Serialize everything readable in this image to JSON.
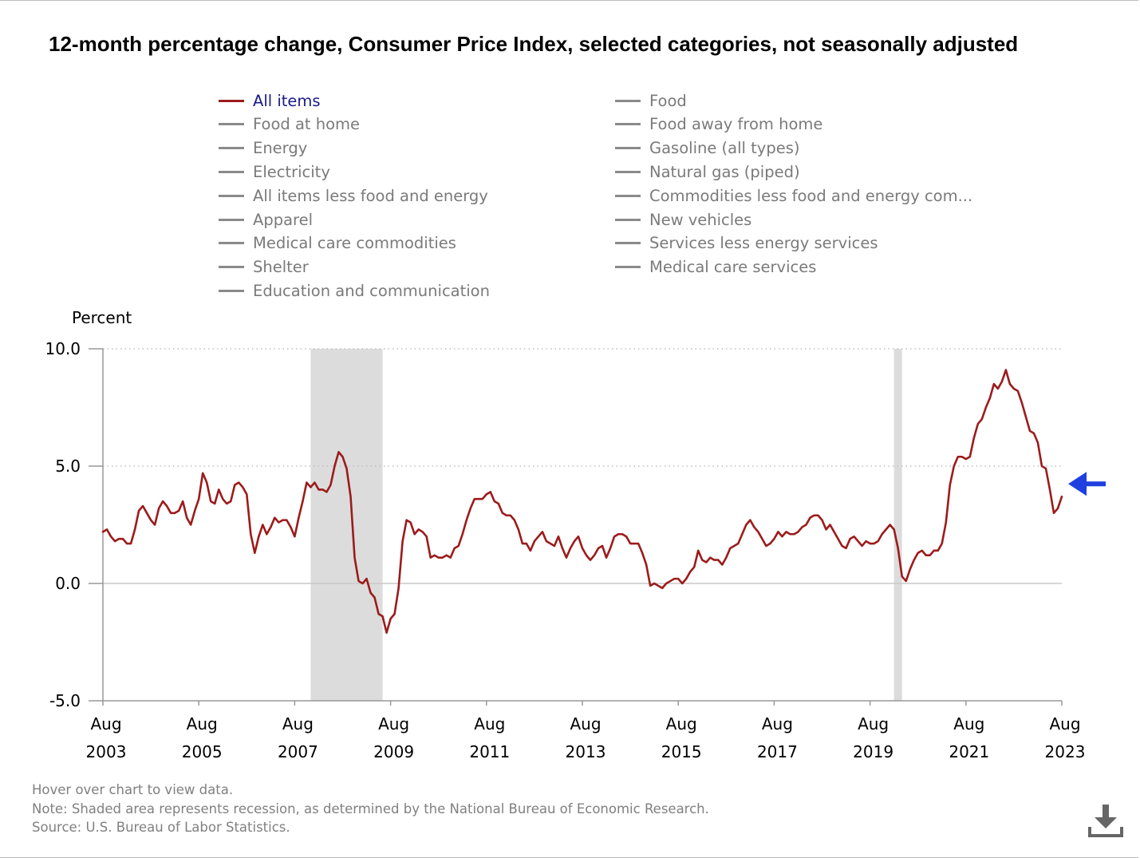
{
  "chart_data": {
    "type": "line",
    "title": "12-month percentage change, Consumer Price Index, selected categories, not seasonally adjusted",
    "ylabel": "Percent",
    "ylim": [
      -5.0,
      10.0
    ],
    "yticks": [
      "10.0",
      "5.0",
      "0.0",
      "-5.0"
    ],
    "yticks_values": [
      10.0,
      5.0,
      0.0,
      -5.0
    ],
    "xlim": [
      "2003-08",
      "2023-08"
    ],
    "xticks": [
      {
        "month": "Aug",
        "year": "2003",
        "date": "2003-08"
      },
      {
        "month": "Aug",
        "year": "2005",
        "date": "2005-08"
      },
      {
        "month": "Aug",
        "year": "2007",
        "date": "2007-08"
      },
      {
        "month": "Aug",
        "year": "2009",
        "date": "2009-08"
      },
      {
        "month": "Aug",
        "year": "2011",
        "date": "2011-08"
      },
      {
        "month": "Aug",
        "year": "2013",
        "date": "2013-08"
      },
      {
        "month": "Aug",
        "year": "2015",
        "date": "2015-08"
      },
      {
        "month": "Aug",
        "year": "2017",
        "date": "2017-08"
      },
      {
        "month": "Aug",
        "year": "2019",
        "date": "2019-08"
      },
      {
        "month": "Aug",
        "year": "2021",
        "date": "2021-08"
      },
      {
        "month": "Aug",
        "year": "2023",
        "date": "2023-08"
      }
    ],
    "grid": "horizontal dotted",
    "legend_placement": "top",
    "recessions": [
      {
        "start": "2007-12",
        "end": "2009-06"
      },
      {
        "start": "2020-02",
        "end": "2020-04"
      }
    ],
    "series": [
      {
        "name": "All items",
        "color": "#9c1b1b",
        "start": "2003-08",
        "frequency": "monthly",
        "values": [
          2.2,
          2.3,
          2.0,
          1.8,
          1.9,
          1.9,
          1.7,
          1.7,
          2.3,
          3.1,
          3.3,
          3.0,
          2.7,
          2.5,
          3.2,
          3.5,
          3.3,
          3.0,
          3.0,
          3.1,
          3.5,
          2.8,
          2.5,
          3.1,
          3.6,
          4.7,
          4.3,
          3.5,
          3.4,
          4.0,
          3.6,
          3.4,
          3.5,
          4.2,
          4.3,
          4.1,
          3.8,
          2.1,
          1.3,
          2.0,
          2.5,
          2.1,
          2.4,
          2.8,
          2.6,
          2.7,
          2.7,
          2.4,
          2.0,
          2.8,
          3.5,
          4.3,
          4.1,
          4.3,
          4.0,
          4.0,
          3.9,
          4.2,
          5.0,
          5.6,
          5.4,
          4.9,
          3.7,
          1.1,
          0.1,
          0.0,
          0.2,
          -0.4,
          -0.6,
          -1.3,
          -1.4,
          -2.1,
          -1.5,
          -1.3,
          -0.2,
          1.8,
          2.7,
          2.6,
          2.1,
          2.3,
          2.2,
          2.0,
          1.1,
          1.2,
          1.1,
          1.1,
          1.2,
          1.1,
          1.5,
          1.6,
          2.1,
          2.7,
          3.2,
          3.6,
          3.6,
          3.6,
          3.8,
          3.9,
          3.5,
          3.4,
          3.0,
          2.9,
          2.9,
          2.7,
          2.3,
          1.7,
          1.7,
          1.4,
          1.8,
          2.0,
          2.2,
          1.8,
          1.7,
          1.6,
          2.0,
          1.5,
          1.1,
          1.5,
          1.8,
          2.0,
          1.5,
          1.2,
          1.0,
          1.2,
          1.5,
          1.6,
          1.1,
          1.5,
          2.0,
          2.1,
          2.1,
          2.0,
          1.7,
          1.7,
          1.7,
          1.3,
          0.8,
          -0.1,
          0.0,
          -0.1,
          -0.2,
          0.0,
          0.1,
          0.2,
          0.2,
          0.0,
          0.2,
          0.5,
          0.7,
          1.4,
          1.0,
          0.9,
          1.1,
          1.0,
          1.0,
          0.8,
          1.1,
          1.5,
          1.6,
          1.7,
          2.1,
          2.5,
          2.7,
          2.4,
          2.2,
          1.9,
          1.6,
          1.7,
          1.9,
          2.2,
          2.0,
          2.2,
          2.1,
          2.1,
          2.2,
          2.4,
          2.5,
          2.8,
          2.9,
          2.9,
          2.7,
          2.3,
          2.5,
          2.2,
          1.9,
          1.6,
          1.5,
          1.9,
          2.0,
          1.8,
          1.6,
          1.8,
          1.7,
          1.7,
          1.8,
          2.1,
          2.3,
          2.5,
          2.3,
          1.5,
          0.3,
          0.1,
          0.6,
          1.0,
          1.3,
          1.4,
          1.2,
          1.2,
          1.4,
          1.4,
          1.7,
          2.6,
          4.2,
          5.0,
          5.4,
          5.4,
          5.3,
          5.4,
          6.2,
          6.8,
          7.0,
          7.5,
          7.9,
          8.5,
          8.3,
          8.6,
          9.1,
          8.5,
          8.3,
          8.2,
          7.7,
          7.1,
          6.5,
          6.4,
          6.0,
          5.0,
          4.9,
          4.0,
          3.0,
          3.2,
          3.7
        ]
      },
      {
        "name": "Food",
        "color": "#8a8a8a"
      },
      {
        "name": "Food at home",
        "color": "#8a8a8a"
      },
      {
        "name": "Food away from home",
        "color": "#8a8a8a"
      },
      {
        "name": "Energy",
        "color": "#8a8a8a"
      },
      {
        "name": "Gasoline (all types)",
        "color": "#8a8a8a"
      },
      {
        "name": "Electricity",
        "color": "#8a8a8a"
      },
      {
        "name": "Natural gas (piped)",
        "color": "#8a8a8a"
      },
      {
        "name": "All items less food and energy",
        "color": "#8a8a8a"
      },
      {
        "name": "Commodities less food and energy com...",
        "color": "#8a8a8a"
      },
      {
        "name": "Apparel",
        "color": "#8a8a8a"
      },
      {
        "name": "New vehicles",
        "color": "#8a8a8a"
      },
      {
        "name": "Medical care commodities",
        "color": "#8a8a8a"
      },
      {
        "name": "Services less energy services",
        "color": "#8a8a8a"
      },
      {
        "name": "Shelter",
        "color": "#8a8a8a"
      },
      {
        "name": "Medical care services",
        "color": "#8a8a8a"
      },
      {
        "name": "Education and communication",
        "color": "#8a8a8a"
      }
    ]
  },
  "colors": {
    "active_series": "#9c1b1b",
    "inactive_series": "#8a8a8a",
    "active_legend_text": "#1a1a8c",
    "recession_shade": "#dcdcdc",
    "arrow": "#1f3fe0"
  },
  "indicator": {
    "icon": "left-arrow-icon",
    "date": "2023-08",
    "value": 3.7
  },
  "footer": {
    "hover": "Hover over chart to view data.",
    "note": "Note: Shaded area represents recession, as determined by the National Bureau of Economic Research.",
    "source": "Source: U.S. Bureau of Labor Statistics."
  },
  "download": {
    "icon": "download-icon"
  }
}
